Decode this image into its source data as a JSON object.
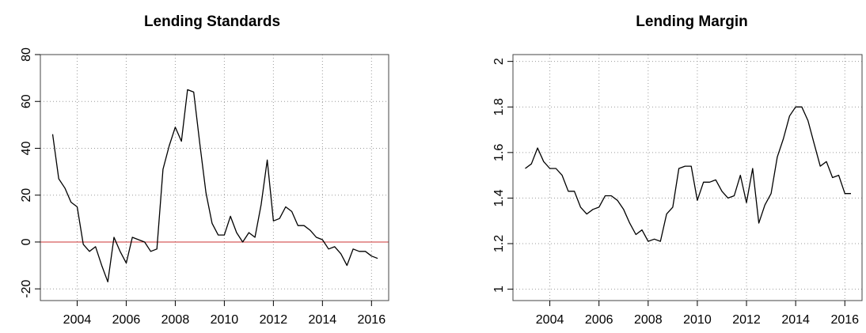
{
  "chart_data": [
    {
      "type": "line",
      "title": "Lending Standards",
      "xlabel": "",
      "ylabel": "",
      "xlim": [
        2002.5,
        2016.7
      ],
      "ylim": [
        -25,
        80
      ],
      "x_ticks": [
        2004,
        2006,
        2008,
        2010,
        2012,
        2014,
        2016
      ],
      "y_ticks": [
        -20,
        0,
        20,
        40,
        60,
        80
      ],
      "grid": true,
      "reference_line": {
        "y": 0,
        "color": "#cc3333"
      },
      "series": [
        {
          "x": [
            2003.0,
            2003.25,
            2003.5,
            2003.75,
            2004.0,
            2004.25,
            2004.5,
            2004.75,
            2005.0,
            2005.25,
            2005.5,
            2005.75,
            2006.0,
            2006.25,
            2006.5,
            2006.75,
            2007.0,
            2007.25,
            2007.5,
            2007.75,
            2008.0,
            2008.25,
            2008.5,
            2008.75,
            2009.0,
            2009.25,
            2009.5,
            2009.75,
            2010.0,
            2010.25,
            2010.5,
            2010.75,
            2011.0,
            2011.25,
            2011.5,
            2011.75,
            2012.0,
            2012.25,
            2012.5,
            2012.75,
            2013.0,
            2013.25,
            2013.5,
            2013.75,
            2014.0,
            2014.25,
            2014.5,
            2014.75,
            2015.0,
            2015.25,
            2015.5,
            2015.75,
            2016.0,
            2016.25
          ],
          "y": [
            46,
            27,
            23,
            17,
            15,
            -1,
            -4,
            -2,
            -10,
            -17,
            2,
            -4,
            -9,
            2,
            1,
            0,
            -4,
            -3,
            31,
            41,
            49,
            43,
            65,
            64,
            42,
            21,
            8,
            3,
            3,
            11,
            4,
            0,
            4,
            2,
            16,
            35,
            9,
            10,
            15,
            13,
            7,
            7,
            5,
            2,
            1,
            -3,
            -2,
            -5,
            -10,
            -3,
            -4,
            -4,
            -6,
            -7
          ]
        }
      ]
    },
    {
      "type": "line",
      "title": "Lending Margin",
      "xlabel": "",
      "ylabel": "",
      "xlim": [
        2002.5,
        2016.7
      ],
      "ylim": [
        0.95,
        2.03
      ],
      "x_ticks": [
        2004,
        2006,
        2008,
        2010,
        2012,
        2014,
        2016
      ],
      "y_ticks": [
        1,
        1.2,
        1.4,
        1.6,
        1.8,
        2
      ],
      "grid": true,
      "series": [
        {
          "x": [
            2003.0,
            2003.25,
            2003.5,
            2003.75,
            2004.0,
            2004.25,
            2004.5,
            2004.75,
            2005.0,
            2005.25,
            2005.5,
            2005.75,
            2006.0,
            2006.25,
            2006.5,
            2006.75,
            2007.0,
            2007.25,
            2007.5,
            2007.75,
            2008.0,
            2008.25,
            2008.5,
            2008.75,
            2009.0,
            2009.25,
            2009.5,
            2009.75,
            2010.0,
            2010.25,
            2010.5,
            2010.75,
            2011.0,
            2011.25,
            2011.5,
            2011.75,
            2012.0,
            2012.25,
            2012.5,
            2012.75,
            2013.0,
            2013.25,
            2013.5,
            2013.75,
            2014.0,
            2014.25,
            2014.5,
            2014.75,
            2015.0,
            2015.25,
            2015.5,
            2015.75,
            2016.0,
            2016.25
          ],
          "y": [
            1.53,
            1.55,
            1.62,
            1.56,
            1.53,
            1.53,
            1.5,
            1.43,
            1.43,
            1.36,
            1.33,
            1.35,
            1.36,
            1.41,
            1.41,
            1.39,
            1.35,
            1.29,
            1.24,
            1.26,
            1.21,
            1.22,
            1.21,
            1.33,
            1.36,
            1.53,
            1.54,
            1.54,
            1.39,
            1.47,
            1.47,
            1.48,
            1.43,
            1.4,
            1.41,
            1.5,
            1.38,
            1.53,
            1.29,
            1.37,
            1.42,
            1.58,
            1.66,
            1.76,
            1.8,
            1.8,
            1.74,
            1.64,
            1.54,
            1.56,
            1.49,
            1.5,
            1.42,
            1.42
          ]
        }
      ]
    }
  ]
}
